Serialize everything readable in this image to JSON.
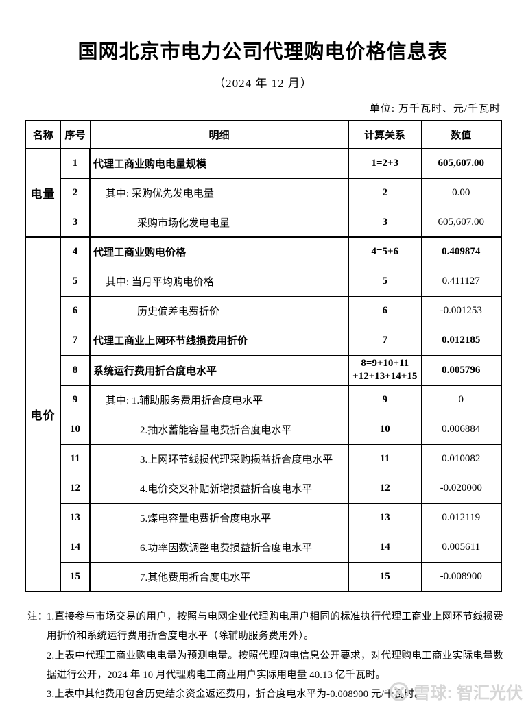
{
  "page": {
    "title": "国网北京市电力公司代理购电价格信息表",
    "subtitle": "（2024 年 12 月）",
    "unit_note": "单位: 万千瓦时、元/千瓦时"
  },
  "table": {
    "headers": {
      "name": "名称",
      "index": "序号",
      "detail": "明细",
      "relation": "计算关系",
      "value": "数值"
    },
    "groups": [
      {
        "label": "电量",
        "start": 0,
        "span": 3
      },
      {
        "label": "电价",
        "start": 3,
        "span": 12
      }
    ],
    "rows": [
      {
        "no": "1",
        "detail": "代理工商业购电电量规模",
        "relation": [
          "1=2+3"
        ],
        "value": "605,607.00",
        "bold": true,
        "indent": 0
      },
      {
        "no": "2",
        "detail": "其中: 采购优先发电电量",
        "relation": [
          "2"
        ],
        "value": "0.00",
        "bold": false,
        "indent": 1
      },
      {
        "no": "3",
        "detail": "采购市场化发电电量",
        "relation": [
          "3"
        ],
        "value": "605,607.00",
        "bold": false,
        "indent": 2
      },
      {
        "no": "4",
        "detail": "代理工商业购电价格",
        "relation": [
          "4=5+6"
        ],
        "value": "0.409874",
        "bold": true,
        "indent": 0
      },
      {
        "no": "5",
        "detail": "其中: 当月平均购电价格",
        "relation": [
          "5"
        ],
        "value": "0.411127",
        "bold": false,
        "indent": 1
      },
      {
        "no": "6",
        "detail": "历史偏差电费折价",
        "relation": [
          "6"
        ],
        "value": "-0.001253",
        "bold": false,
        "indent": 2
      },
      {
        "no": "7",
        "detail": "代理工商业上网环节线损费用折价",
        "relation": [
          "7"
        ],
        "value": "0.012185",
        "bold": true,
        "indent": 0
      },
      {
        "no": "8",
        "detail": "系统运行费用折合度电水平",
        "relation": [
          "8=9+10+11",
          "+12+13+14+15"
        ],
        "value": "0.005796",
        "bold": true,
        "indent": 0
      },
      {
        "no": "9",
        "detail": "其中: 1.辅助服务费用折合度电水平",
        "relation": [
          "9"
        ],
        "value": "0",
        "bold": false,
        "indent": 1
      },
      {
        "no": "10",
        "detail": "2.抽水蓄能容量电费折合度电水平",
        "relation": [
          "10"
        ],
        "value": "0.006884",
        "bold": false,
        "indent": 3
      },
      {
        "no": "11",
        "detail": "3.上网环节线损代理采购损益折合度电水平",
        "relation": [
          "11"
        ],
        "value": "0.010082",
        "bold": false,
        "indent": 3
      },
      {
        "no": "12",
        "detail": "4.电价交叉补贴新增损益折合度电水平",
        "relation": [
          "12"
        ],
        "value": "-0.020000",
        "bold": false,
        "indent": 3
      },
      {
        "no": "13",
        "detail": "5.煤电容量电费折合度电水平",
        "relation": [
          "13"
        ],
        "value": "0.012119",
        "bold": false,
        "indent": 3
      },
      {
        "no": "14",
        "detail": "6.功率因数调整电费损益折合度电水平",
        "relation": [
          "14"
        ],
        "value": "0.005611",
        "bold": false,
        "indent": 3
      },
      {
        "no": "15",
        "detail": "7.其他费用折合度电水平",
        "relation": [
          "15"
        ],
        "value": "-0.008900",
        "bold": false,
        "indent": 3
      }
    ]
  },
  "notes": {
    "label": "注：",
    "items": [
      "1.直接参与市场交易的用户，按照与电网企业代理购电用户相同的标准执行代理工商业上网环节线损费用折价和系统运行费用折合度电水平（除辅助服务费用外）。",
      "2.上表中代理工商业购电电量为预测电量。按照代理购电信息公开要求，对代理购电工商业实际电量数据进行公开，2024 年 10 月代理购电工商业用户实际用电量 40.13 亿千瓦时。",
      "3.上表中其他费用包含历史结余资金返还费用，折合度电水平为-0.008900 元/千瓦时。"
    ]
  },
  "watermark": {
    "text": "雪球: 智汇光伏",
    "logo": "xueqiu-logo",
    "color": "#d6d6d6"
  }
}
